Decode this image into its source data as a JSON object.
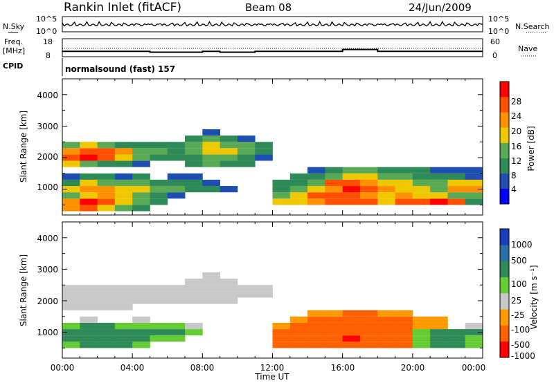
{
  "header": {
    "station": "Rankin Inlet (fitACF)",
    "beam": "Beam 08",
    "date": "24/Jun/2009"
  },
  "nsky_panel": {
    "left_label": "N.Sky",
    "left_ticks": [
      "10^5",
      "10^0"
    ],
    "right_ticks": [
      "10^5",
      "10^0"
    ],
    "right_label": "N.Search"
  },
  "freq_panel": {
    "left_label_line1": "Freq.",
    "left_label_line2": "[MHz]",
    "left_ticks": [
      "18",
      "8"
    ],
    "right_ticks": [
      "60",
      "0"
    ],
    "right_label": "Nave"
  },
  "cpid": {
    "label": "CPID",
    "value": "normalsound (fast) 157"
  },
  "power_panel": {
    "ylabel": "Slant Range [km]",
    "yticks": [
      "1000",
      "2000",
      "3000",
      "4000"
    ],
    "colorbar_label": "Power [dB]",
    "colorbar_ticks": [
      "4",
      "8",
      "12",
      "16",
      "20",
      "24",
      "28"
    ],
    "colorbar_colors": [
      "#0000ff",
      "#1e4fb0",
      "#2e8b57",
      "#5aaa55",
      "#f0c800",
      "#ff9000",
      "#ff5000",
      "#ff0000"
    ]
  },
  "velocity_panel": {
    "ylabel": "Slant Range [km]",
    "yticks": [
      "1000",
      "2000",
      "3000",
      "4000"
    ],
    "colorbar_label": "Velocity [m s⁻¹]",
    "colorbar_ticks": [
      "1000",
      "500",
      "100",
      "25",
      "-25",
      "-100",
      "-500",
      "-1000"
    ],
    "colorbar_colors": [
      "#1a3fb8",
      "#2b6fa8",
      "#2e8b57",
      "#66cc33",
      "#c8c8c8",
      "#ff9a00",
      "#ff6000",
      "#ff0000"
    ]
  },
  "xaxis": {
    "label": "Time UT",
    "ticks": [
      "00:00",
      "04:00",
      "08:00",
      "12:00",
      "16:00",
      "20:00",
      "00:00"
    ]
  },
  "chart_data": {
    "type": "heatmap",
    "x_range": [
      "00:00",
      "24:00"
    ],
    "ylim": [
      180,
      4500
    ],
    "ranges_km": [
      400,
      600,
      800,
      1000,
      1200,
      1400,
      1600,
      1800,
      2000,
      2200,
      2400,
      2600,
      2800
    ],
    "times": [
      "00:00",
      "01:00",
      "02:00",
      "03:00",
      "04:00",
      "05:00",
      "06:00",
      "07:00",
      "08:00",
      "09:00",
      "10:00",
      "11:00",
      "12:00",
      "13:00",
      "14:00",
      "15:00",
      "16:00",
      "17:00",
      "18:00",
      "19:00",
      "20:00",
      "21:00",
      "22:00",
      "23:00"
    ],
    "power_db": [
      [
        22,
        26,
        18,
        14,
        10,
        0,
        0,
        0,
        0,
        0,
        0,
        0,
        0,
        0,
        0,
        0,
        0,
        0,
        0,
        0,
        0,
        0,
        0,
        0
      ],
      [
        22,
        28,
        24,
        16,
        12,
        8,
        0,
        0,
        0,
        0,
        0,
        0,
        16,
        18,
        22,
        24,
        26,
        24,
        18,
        26,
        26,
        28,
        24,
        10
      ],
      [
        14,
        18,
        20,
        16,
        12,
        8,
        6,
        0,
        0,
        0,
        0,
        0,
        14,
        16,
        24,
        24,
        26,
        22,
        18,
        20,
        18,
        16,
        14,
        14
      ],
      [
        18,
        22,
        20,
        18,
        16,
        12,
        14,
        10,
        8,
        6,
        0,
        0,
        10,
        14,
        16,
        22,
        28,
        26,
        20,
        18,
        16,
        14,
        20,
        22
      ],
      [
        10,
        16,
        14,
        12,
        14,
        10,
        10,
        8,
        6,
        0,
        0,
        0,
        8,
        10,
        14,
        24,
        26,
        22,
        18,
        16,
        14,
        12,
        16,
        18
      ],
      [
        6,
        8,
        8,
        6,
        8,
        0,
        6,
        4,
        0,
        0,
        0,
        0,
        0,
        8,
        10,
        14,
        16,
        16,
        12,
        12,
        10,
        8,
        8,
        6
      ],
      [
        0,
        0,
        0,
        0,
        0,
        0,
        0,
        0,
        0,
        0,
        0,
        0,
        0,
        0,
        6,
        10,
        12,
        14,
        10,
        8,
        8,
        6,
        6,
        6
      ],
      [
        16,
        12,
        10,
        8,
        6,
        0,
        0,
        8,
        12,
        10,
        8,
        0,
        0,
        0,
        0,
        0,
        0,
        0,
        0,
        0,
        0,
        0,
        0,
        0
      ],
      [
        26,
        28,
        24,
        18,
        12,
        10,
        8,
        10,
        14,
        12,
        10,
        6,
        0,
        0,
        0,
        0,
        0,
        0,
        0,
        0,
        0,
        0,
        0,
        0
      ],
      [
        20,
        24,
        26,
        22,
        14,
        12,
        10,
        14,
        16,
        16,
        12,
        10,
        0,
        0,
        0,
        0,
        0,
        0,
        0,
        0,
        0,
        0,
        0,
        0
      ],
      [
        12,
        16,
        14,
        10,
        10,
        8,
        10,
        14,
        16,
        14,
        12,
        8,
        0,
        0,
        0,
        0,
        0,
        0,
        0,
        0,
        0,
        0,
        0,
        0
      ],
      [
        0,
        0,
        0,
        0,
        0,
        0,
        0,
        8,
        12,
        10,
        6,
        0,
        0,
        0,
        0,
        0,
        0,
        0,
        0,
        0,
        0,
        0,
        0,
        0
      ],
      [
        0,
        0,
        0,
        0,
        0,
        0,
        0,
        0,
        6,
        0,
        0,
        0,
        0,
        0,
        0,
        0,
        0,
        0,
        0,
        0,
        0,
        0,
        0,
        0
      ]
    ],
    "velocity_ms": [
      [
        0,
        0,
        0,
        0,
        0,
        0,
        0,
        0,
        0,
        0,
        0,
        0,
        0,
        0,
        0,
        0,
        0,
        0,
        0,
        0,
        0,
        0,
        0,
        0
      ],
      [
        60,
        110,
        110,
        110,
        60,
        0,
        0,
        0,
        0,
        0,
        0,
        0,
        -120,
        -250,
        -300,
        -400,
        -450,
        -300,
        -200,
        -120,
        60,
        120,
        110,
        60
      ],
      [
        120,
        150,
        150,
        120,
        110,
        60,
        60,
        0,
        0,
        0,
        0,
        0,
        -120,
        -250,
        -350,
        -400,
        -500,
        -350,
        -250,
        -150,
        60,
        110,
        110,
        60
      ],
      [
        110,
        150,
        150,
        130,
        120,
        110,
        110,
        60,
        0,
        0,
        0,
        0,
        -100,
        -200,
        -300,
        -350,
        -400,
        -300,
        -250,
        -120,
        60,
        110,
        110,
        110
      ],
      [
        60,
        110,
        110,
        80,
        80,
        60,
        60,
        20,
        0,
        0,
        0,
        0,
        -60,
        -150,
        -200,
        -300,
        -350,
        -250,
        -200,
        -120,
        -60,
        -60,
        0,
        20
      ],
      [
        0,
        20,
        0,
        0,
        20,
        0,
        0,
        0,
        0,
        0,
        0,
        0,
        0,
        -60,
        -120,
        -200,
        -250,
        -200,
        -150,
        -100,
        -60,
        -30,
        0,
        0
      ],
      [
        0,
        0,
        0,
        0,
        0,
        0,
        0,
        0,
        0,
        0,
        0,
        0,
        0,
        0,
        -30,
        -60,
        -120,
        -150,
        -60,
        -30,
        0,
        0,
        0,
        0
      ],
      [
        10,
        10,
        10,
        10,
        0,
        0,
        0,
        0,
        0,
        0,
        0,
        0,
        0,
        0,
        0,
        0,
        0,
        0,
        0,
        0,
        0,
        0,
        0,
        0
      ],
      [
        10,
        10,
        10,
        10,
        10,
        10,
        10,
        10,
        10,
        10,
        0,
        0,
        0,
        0,
        0,
        0,
        0,
        0,
        0,
        0,
        0,
        0,
        0,
        0
      ],
      [
        10,
        10,
        10,
        10,
        10,
        10,
        10,
        10,
        10,
        10,
        10,
        10,
        0,
        0,
        0,
        0,
        0,
        0,
        0,
        0,
        0,
        0,
        0,
        0
      ],
      [
        10,
        10,
        10,
        10,
        10,
        10,
        10,
        10,
        10,
        10,
        10,
        10,
        0,
        0,
        0,
        0,
        0,
        0,
        0,
        0,
        0,
        0,
        0,
        0
      ],
      [
        0,
        0,
        0,
        0,
        0,
        0,
        0,
        10,
        10,
        10,
        0,
        0,
        0,
        0,
        0,
        0,
        0,
        0,
        0,
        0,
        0,
        0,
        0,
        0
      ],
      [
        0,
        0,
        0,
        0,
        0,
        0,
        0,
        0,
        10,
        0,
        0,
        0,
        0,
        0,
        0,
        0,
        0,
        0,
        0,
        0,
        0,
        0,
        0,
        0
      ]
    ],
    "freq_mhz": [
      11,
      11,
      11,
      11,
      11,
      10.5,
      10.5,
      10.5,
      11,
      10.5,
      10.5,
      11,
      11,
      11,
      11,
      11,
      12,
      12,
      11,
      11,
      11,
      11,
      11,
      11
    ],
    "nave_level": 10
  }
}
